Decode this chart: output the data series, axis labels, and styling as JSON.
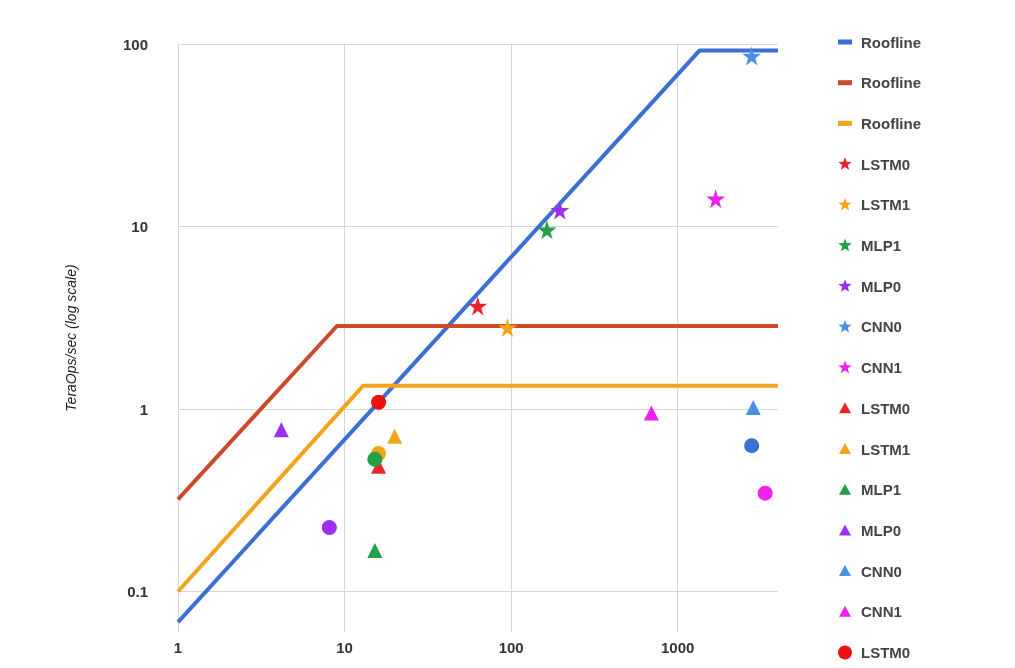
{
  "chart_data": {
    "type": "scatter",
    "ylabel": "TeraOps/sec (log scale)",
    "log": "xy",
    "grid": true,
    "legend": "right",
    "xlim": [
      1,
      4000
    ],
    "xticks": [
      1,
      10,
      100,
      1000
    ],
    "ylim": [
      0.06,
      100
    ],
    "yticks": [
      0.1,
      1,
      10,
      100
    ],
    "series": [
      {
        "type": "line",
        "name": "Roofline",
        "color": "#3b6fd4",
        "marker": "none",
        "x": [
          1,
          1350,
          4000
        ],
        "values": [
          0.068,
          92,
          92
        ]
      },
      {
        "type": "line",
        "name": "Roofline",
        "color": "#cc4a2c",
        "marker": "none",
        "x": [
          1,
          9,
          4000
        ],
        "values": [
          0.32,
          2.85,
          2.85
        ]
      },
      {
        "type": "line",
        "name": "Roofline",
        "color": "#f4a41c",
        "marker": "none",
        "x": [
          1,
          12.9,
          4000
        ],
        "values": [
          0.1,
          1.34,
          1.34
        ]
      },
      {
        "name": "LSTM0",
        "color": "#e8262a",
        "marker": "star",
        "x": [
          63
        ],
        "values": [
          3.67
        ]
      },
      {
        "name": "LSTM1",
        "color": "#f4a41c",
        "marker": "star",
        "x": [
          95
        ],
        "values": [
          2.8
        ]
      },
      {
        "name": "MLP1",
        "color": "#22a045",
        "marker": "star",
        "x": [
          164
        ],
        "values": [
          9.6
        ]
      },
      {
        "name": "MLP0",
        "color": "#9a2ff0",
        "marker": "star",
        "x": [
          196
        ],
        "values": [
          12.3
        ]
      },
      {
        "name": "CNN0",
        "color": "#4a8ee6",
        "marker": "star",
        "x": [
          2780
        ],
        "values": [
          86
        ]
      },
      {
        "name": "CNN1",
        "color": "#f020f0",
        "marker": "star",
        "x": [
          1690
        ],
        "values": [
          14.2
        ]
      },
      {
        "name": "LSTM0",
        "color": "#e8262a",
        "marker": "triangle",
        "x": [
          16
        ],
        "values": [
          0.485
        ]
      },
      {
        "name": "LSTM1",
        "color": "#f4a41c",
        "marker": "triangle",
        "x": [
          20
        ],
        "values": [
          0.71
        ]
      },
      {
        "name": "MLP1",
        "color": "#22a045",
        "marker": "triangle",
        "x": [
          15.2
        ],
        "values": [
          0.168
        ]
      },
      {
        "name": "MLP0",
        "color": "#9a2ff0",
        "marker": "triangle",
        "x": [
          4.17
        ],
        "values": [
          0.77
        ]
      },
      {
        "name": "CNN0",
        "color": "#4a8ee6",
        "marker": "triangle",
        "x": [
          2840
        ],
        "values": [
          1.02
        ]
      },
      {
        "name": "CNN1",
        "color": "#f020f0",
        "marker": "triangle",
        "x": [
          695
        ],
        "values": [
          0.95
        ]
      },
      {
        "name": "LSTM0",
        "color": "#ee1111",
        "marker": "circle",
        "x": [
          16
        ],
        "values": [
          1.09
        ]
      },
      {
        "color": "#f4a41c",
        "marker": "circle",
        "x": [
          16
        ],
        "values": [
          0.57
        ]
      },
      {
        "color": "#22a045",
        "marker": "circle",
        "x": [
          15.2
        ],
        "values": [
          0.53
        ]
      },
      {
        "color": "#9a2ff0",
        "marker": "circle",
        "x": [
          8.1
        ],
        "values": [
          0.224
        ]
      },
      {
        "color": "#3b6fd4",
        "marker": "circle",
        "x": [
          2780
        ],
        "values": [
          0.63
        ]
      },
      {
        "color": "#f020f0",
        "marker": "circle",
        "x": [
          3350
        ],
        "values": [
          0.346
        ]
      }
    ]
  }
}
